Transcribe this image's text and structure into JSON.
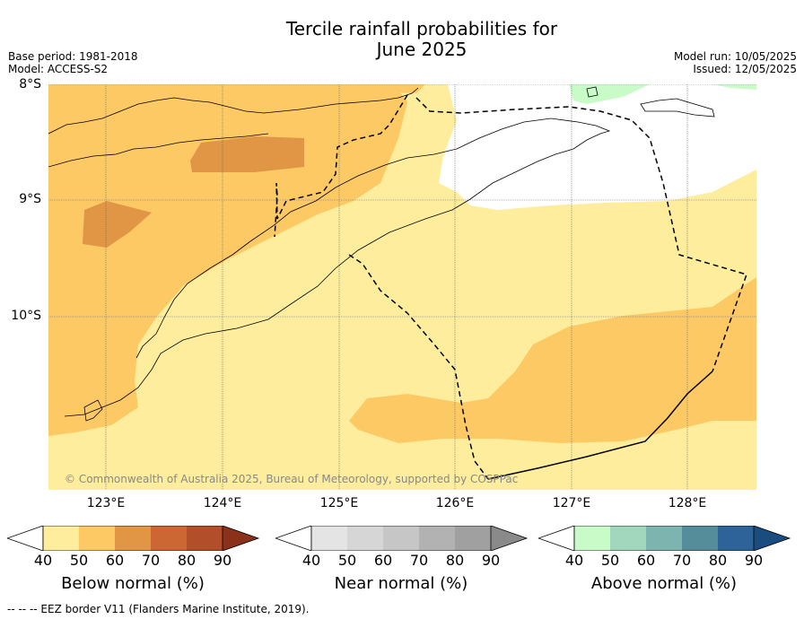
{
  "title_line1": "Tercile rainfall probabilities for",
  "title_line2": "June 2025",
  "base_period": "Base period: 1981-2018",
  "model": "Model: ACCESS-S2",
  "model_run": "Model run: 10/05/2025",
  "issued": "Issued: 12/05/2025",
  "lat_labels": [
    "8°S",
    "9°S",
    "10°S"
  ],
  "lon_labels": [
    "123°E",
    "124°E",
    "125°E",
    "126°E",
    "127°E",
    "128°E"
  ],
  "copyright": "© Commonwealth of Australia 2025, Bureau of Meteorology, supported by COSPPac",
  "colorbars": [
    {
      "label": "Below normal (%)",
      "ticks": [
        "40",
        "50",
        "60",
        "70",
        "80",
        "90"
      ],
      "colors": [
        "#ffffff",
        "#feed9d",
        "#fdc965",
        "#e09645",
        "#cc6633",
        "#b24e2a",
        "#8c3119"
      ]
    },
    {
      "label": "Near normal (%)",
      "ticks": [
        "40",
        "50",
        "60",
        "70",
        "80",
        "90"
      ],
      "colors": [
        "#ffffff",
        "#e4e4e4",
        "#d6d6d6",
        "#c6c6c6",
        "#b2b2b2",
        "#a0a0a0",
        "#8a8a8a"
      ]
    },
    {
      "label": "Above normal (%)",
      "ticks": [
        "40",
        "50",
        "60",
        "70",
        "80",
        "90"
      ],
      "colors": [
        "#ffffff",
        "#c8fbc8",
        "#a2d6bd",
        "#7db4b0",
        "#558e9a",
        "#2d6399",
        "#1a4c80"
      ]
    }
  ],
  "footer": "--  --  -- EEZ border V11 (Flanders Marine Institute, 2019)."
}
